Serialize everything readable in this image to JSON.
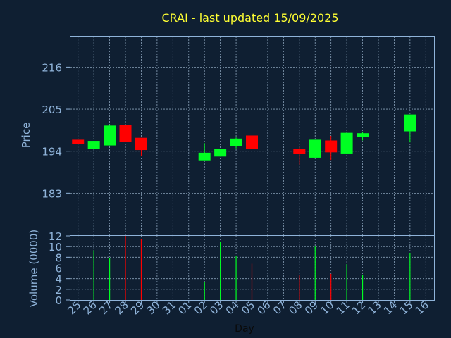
{
  "colors": {
    "background": "#0f1f32",
    "title": "#ffff33",
    "axis": "#8fb3d9",
    "up": "#00ff22",
    "down": "#ff0000"
  },
  "chart_data": [
    {
      "type": "candlestick",
      "title": "CRAI - last updated 15/09/2025",
      "ylabel": "Price",
      "ylim": [
        172,
        224
      ],
      "yticks": [
        183,
        194,
        205,
        216
      ],
      "grid": true,
      "categories": [
        "25",
        "26",
        "27",
        "28",
        "29",
        "30",
        "31",
        "01",
        "02",
        "03",
        "04",
        "05",
        "06",
        "07",
        "08",
        "09",
        "10",
        "11",
        "12",
        "13",
        "14",
        "15",
        "16"
      ],
      "candles": [
        {
          "x": "25",
          "open": 197.0,
          "close": 195.8,
          "high": 197.0,
          "low": 195.8
        },
        {
          "x": "26",
          "open": 194.6,
          "close": 196.7,
          "high": 196.7,
          "low": 194.6
        },
        {
          "x": "27",
          "open": 195.5,
          "close": 200.7,
          "high": 201.0,
          "low": 195.5
        },
        {
          "x": "28",
          "open": 200.8,
          "close": 196.5,
          "high": 200.8,
          "low": 196.5
        },
        {
          "x": "29",
          "open": 197.5,
          "close": 194.3,
          "high": 197.5,
          "low": 192.8
        },
        {
          "x": "02",
          "open": 191.6,
          "close": 193.6,
          "high": 196.1,
          "low": 191.6
        },
        {
          "x": "03",
          "open": 192.6,
          "close": 194.6,
          "high": 194.6,
          "low": 192.6
        },
        {
          "x": "04",
          "open": 195.3,
          "close": 197.3,
          "high": 197.6,
          "low": 194.7
        },
        {
          "x": "05",
          "open": 198.1,
          "close": 194.5,
          "high": 199.1,
          "low": 194.5
        },
        {
          "x": "08",
          "open": 194.5,
          "close": 193.3,
          "high": 195.0,
          "low": 190.5
        },
        {
          "x": "09",
          "open": 192.3,
          "close": 197.0,
          "high": 197.0,
          "low": 192.3
        },
        {
          "x": "10",
          "open": 196.8,
          "close": 193.7,
          "high": 198.0,
          "low": 191.7
        },
        {
          "x": "11",
          "open": 193.4,
          "close": 198.8,
          "high": 198.8,
          "low": 193.4
        },
        {
          "x": "12",
          "open": 197.7,
          "close": 198.7,
          "high": 199.1,
          "low": 196.8
        },
        {
          "x": "15",
          "open": 199.2,
          "close": 203.6,
          "high": 203.6,
          "low": 196.3
        }
      ]
    },
    {
      "type": "bar",
      "xlabel": "Day",
      "ylabel": "Volume (0000)",
      "ylim": [
        0,
        12
      ],
      "yticks": [
        0,
        2,
        4,
        6,
        8,
        10,
        12
      ],
      "grid": true,
      "categories": [
        "25",
        "26",
        "27",
        "28",
        "29",
        "30",
        "31",
        "01",
        "02",
        "03",
        "04",
        "05",
        "06",
        "07",
        "08",
        "09",
        "10",
        "11",
        "12",
        "13",
        "14",
        "15",
        "16"
      ],
      "bars": [
        {
          "x": "26",
          "value": 9.3,
          "direction": "up"
        },
        {
          "x": "27",
          "value": 7.8,
          "direction": "up"
        },
        {
          "x": "28",
          "value": 12.0,
          "direction": "down"
        },
        {
          "x": "29",
          "value": 11.4,
          "direction": "down"
        },
        {
          "x": "02",
          "value": 3.4,
          "direction": "up"
        },
        {
          "x": "03",
          "value": 10.9,
          "direction": "up"
        },
        {
          "x": "04",
          "value": 8.2,
          "direction": "up"
        },
        {
          "x": "05",
          "value": 6.8,
          "direction": "down"
        },
        {
          "x": "08",
          "value": 4.6,
          "direction": "down"
        },
        {
          "x": "09",
          "value": 10.0,
          "direction": "up"
        },
        {
          "x": "10",
          "value": 4.9,
          "direction": "down"
        },
        {
          "x": "11",
          "value": 6.7,
          "direction": "up"
        },
        {
          "x": "12",
          "value": 4.7,
          "direction": "up"
        },
        {
          "x": "15",
          "value": 8.8,
          "direction": "up"
        }
      ]
    }
  ]
}
